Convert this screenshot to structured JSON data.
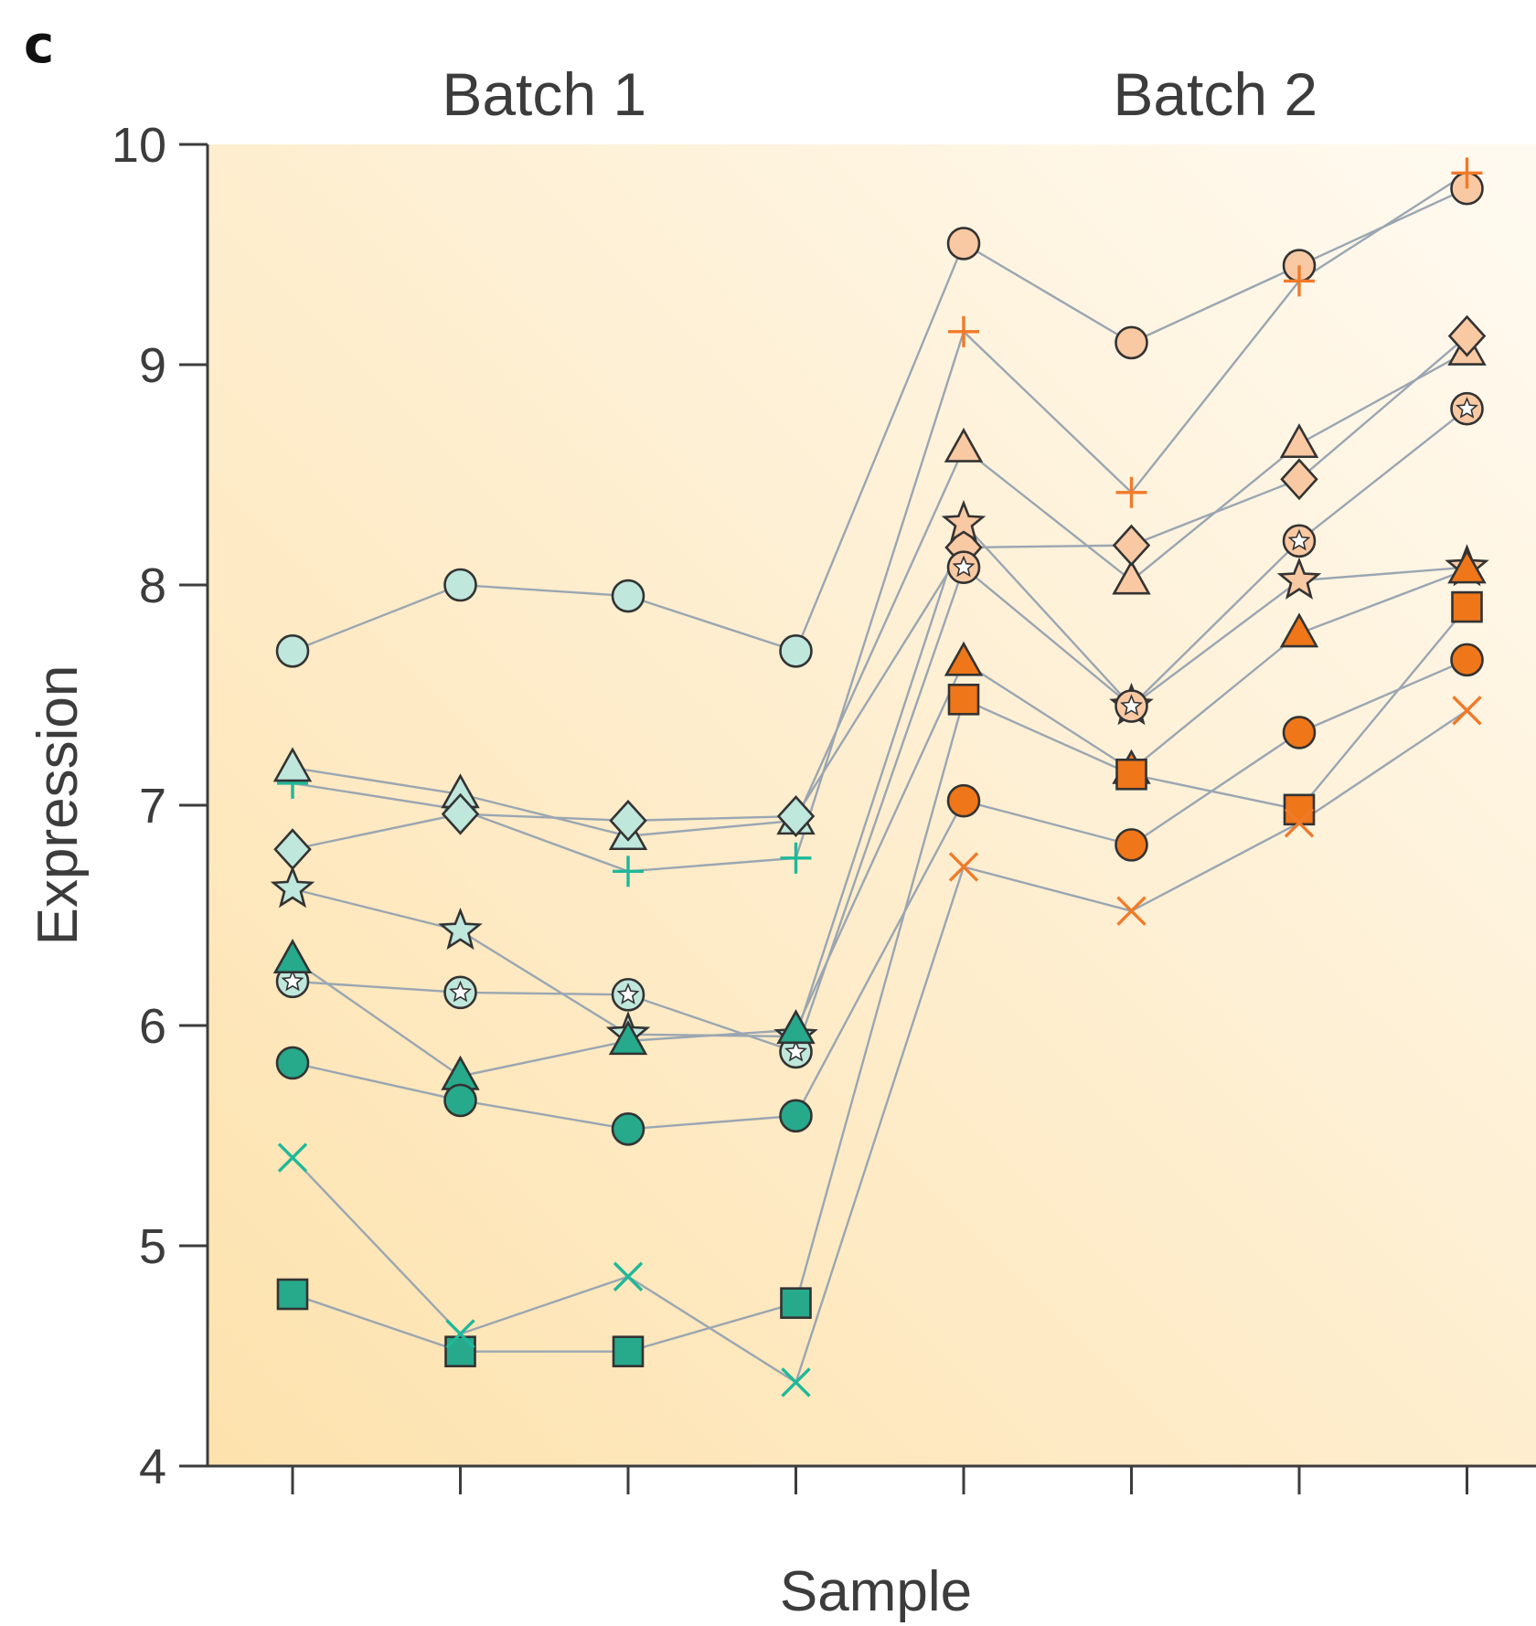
{
  "panel_label": "c",
  "chart_data": {
    "type": "line",
    "title": "",
    "xlabel": "Sample",
    "ylabel": "Expression",
    "ylim": [
      4,
      10
    ],
    "yticks": [
      4,
      5,
      6,
      7,
      8,
      9,
      10
    ],
    "x": [
      1,
      2,
      3,
      4,
      5,
      6,
      7,
      8
    ],
    "x_tick_labels_shown": false,
    "grid": false,
    "legend": "none",
    "groups": [
      {
        "label": "Batch 1",
        "samples": [
          1,
          2,
          3,
          4
        ]
      },
      {
        "label": "Batch 2",
        "samples": [
          5,
          6,
          7,
          8
        ]
      }
    ],
    "colors": {
      "background_left": "#fde2ad",
      "background_right": "#fffaf1",
      "line": "#9aa6b2",
      "marker_edge": "#333333",
      "batch1_light": "#bfe7dc",
      "batch1_dark": "#27a98b",
      "batch1_cross": "#1fb89a",
      "batch2_light": "#f9c9a3",
      "batch2_dark": "#ef7619",
      "batch2_cross": "#f07a2a"
    },
    "series": [
      {
        "marker": "circle",
        "shade": "light",
        "values": [
          7.7,
          8.0,
          7.95,
          7.7,
          9.55,
          9.1,
          9.45,
          9.8
        ]
      },
      {
        "marker": "plus",
        "shade": "cross",
        "values": [
          7.1,
          6.98,
          6.7,
          6.76,
          9.15,
          8.42,
          9.38,
          9.87
        ]
      },
      {
        "marker": "triangle",
        "shade": "light",
        "values": [
          7.17,
          7.05,
          6.86,
          6.93,
          8.62,
          8.02,
          8.64,
          9.06
        ]
      },
      {
        "marker": "diamond",
        "shade": "light",
        "values": [
          6.8,
          6.96,
          6.93,
          6.95,
          8.17,
          8.18,
          8.48,
          9.13
        ]
      },
      {
        "marker": "star",
        "shade": "light",
        "values": [
          6.62,
          6.43,
          5.96,
          5.95,
          8.28,
          7.45,
          8.02,
          8.08
        ]
      },
      {
        "marker": "flower",
        "shade": "light",
        "values": [
          6.2,
          6.15,
          6.14,
          5.88,
          8.08,
          7.45,
          8.2,
          8.8
        ]
      },
      {
        "marker": "triangle",
        "shade": "dark",
        "values": [
          6.3,
          5.77,
          5.93,
          5.98,
          7.65,
          7.16,
          7.78,
          8.07
        ]
      },
      {
        "marker": "circle",
        "shade": "dark",
        "values": [
          5.83,
          5.66,
          5.53,
          5.59,
          7.02,
          6.82,
          7.33,
          7.66
        ]
      },
      {
        "marker": "square",
        "shade": "dark",
        "values": [
          4.78,
          4.52,
          4.52,
          4.74,
          7.48,
          7.14,
          6.98,
          7.9
        ]
      },
      {
        "marker": "x",
        "shade": "cross",
        "values": [
          5.4,
          4.6,
          4.86,
          4.38,
          6.72,
          6.52,
          6.92,
          7.43
        ]
      }
    ]
  }
}
